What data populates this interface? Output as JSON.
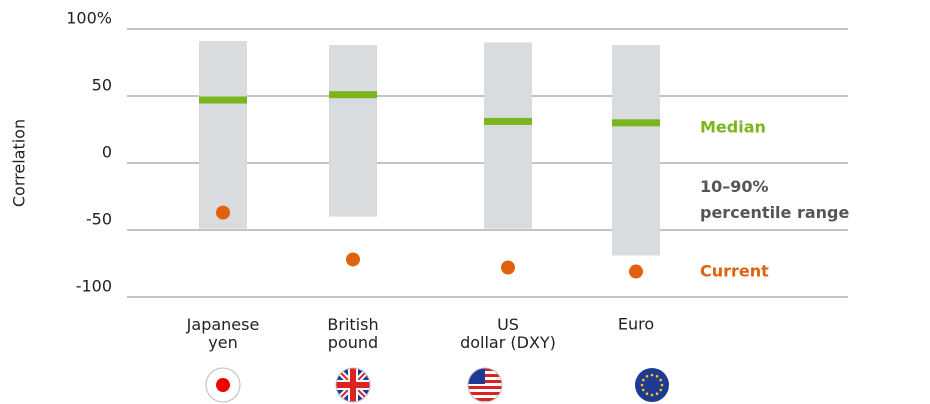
{
  "chart_data": {
    "type": "range",
    "y_label": "Correlation",
    "categories": [
      "Japanese\nyen",
      "British\npound",
      "US\ndollar (DXY)",
      "Euro"
    ],
    "series": [
      {
        "name": "10–90%\npercentile range",
        "color": "#d8dcde",
        "low": [
          -49,
          -40,
          -49,
          -69
        ],
        "high": [
          91,
          88,
          90,
          88
        ]
      },
      {
        "name": "Median",
        "color": "#7ab51d",
        "values": [
          47,
          51,
          31,
          30
        ]
      },
      {
        "name": "Current",
        "color": "#e0620d",
        "values": [
          -37,
          -72,
          -78,
          -81
        ]
      }
    ],
    "ylim": [
      -100,
      100
    ],
    "yticks": [
      {
        "value": 100,
        "label": "100%"
      },
      50,
      0,
      -50,
      -100
    ],
    "grid": true
  }
}
